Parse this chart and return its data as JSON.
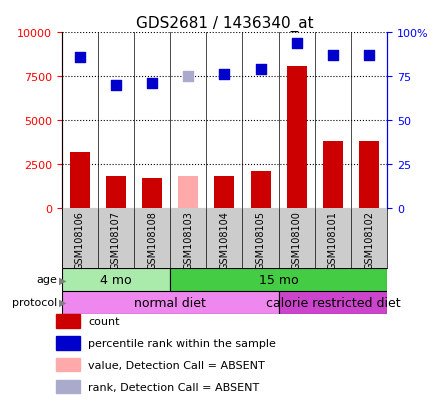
{
  "title": "GDS2681 / 1436340_at",
  "samples": [
    "GSM108106",
    "GSM108107",
    "GSM108108",
    "GSM108103",
    "GSM108104",
    "GSM108105",
    "GSM108100",
    "GSM108101",
    "GSM108102"
  ],
  "counts": [
    3200,
    1800,
    1700,
    1800,
    1800,
    2100,
    8100,
    3800,
    3800
  ],
  "percentiles": [
    86,
    70,
    71,
    75,
    76,
    79,
    94,
    87,
    87
  ],
  "absent_flags": [
    false,
    false,
    false,
    true,
    false,
    false,
    false,
    false,
    false
  ],
  "bar_color_present": "#cc0000",
  "bar_color_absent": "#ffaaaa",
  "dot_color_present": "#0000cc",
  "dot_color_absent": "#aaaacc",
  "ylim_left": [
    0,
    10000
  ],
  "ylim_right": [
    0,
    100
  ],
  "yticks_left": [
    0,
    2500,
    5000,
    7500,
    10000
  ],
  "yticks_right": [
    0,
    25,
    50,
    75,
    100
  ],
  "age_groups": [
    {
      "label": "4 mo",
      "start": 0,
      "end": 3,
      "color": "#aaeaaa"
    },
    {
      "label": "15 mo",
      "start": 3,
      "end": 9,
      "color": "#44cc44"
    }
  ],
  "protocol_groups": [
    {
      "label": "normal diet",
      "start": 0,
      "end": 6,
      "color": "#ee88ee"
    },
    {
      "label": "calorie restricted diet",
      "start": 6,
      "end": 9,
      "color": "#cc44cc"
    }
  ],
  "legend_items": [
    {
      "color": "#cc0000",
      "label": "count"
    },
    {
      "color": "#0000cc",
      "label": "percentile rank within the sample"
    },
    {
      "color": "#ffaaaa",
      "label": "value, Detection Call = ABSENT"
    },
    {
      "color": "#aaaacc",
      "label": "rank, Detection Call = ABSENT"
    }
  ],
  "bar_width": 0.55,
  "dot_size": 50,
  "title_fontsize": 11,
  "tick_fontsize": 8,
  "label_fontsize": 8,
  "sample_fontsize": 7,
  "annotation_fontsize": 9,
  "sample_box_color": "#cccccc"
}
